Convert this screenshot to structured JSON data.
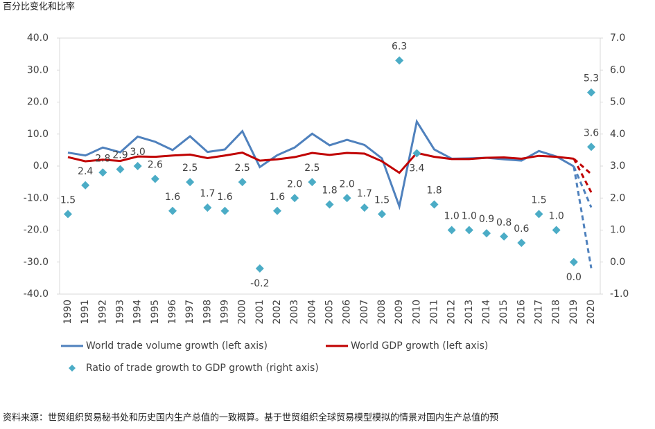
{
  "chart_data": {
    "type": "line",
    "title": "百分比变化和比率",
    "footnote": "资料来源：世贸组织贸易秘书处和历史国内生产总值的一致概算。基于世贸组织全球贸易模型模拟的情景对国内生产总值的预",
    "categories": [
      "1990",
      "1991",
      "1992",
      "1993",
      "1994",
      "1995",
      "1996",
      "1997",
      "1998",
      "1999",
      "2000",
      "2001",
      "2002",
      "2003",
      "2004",
      "2005",
      "2006",
      "2007",
      "2008",
      "2009",
      "2010",
      "2011",
      "2012",
      "2013",
      "2014",
      "2015",
      "2016",
      "2017",
      "2018",
      "2019",
      "2020"
    ],
    "ylim": [
      -40,
      40
    ],
    "yticks": [
      {
        "value": -40,
        "label": "-40.0"
      },
      {
        "value": -30,
        "label": "-30.0"
      },
      {
        "value": -20,
        "label": "-20.0"
      },
      {
        "value": -10,
        "label": "-10.0"
      },
      {
        "value": 0,
        "label": "0.0"
      },
      {
        "value": 10,
        "label": "10.0"
      },
      {
        "value": 20,
        "label": "20.0"
      },
      {
        "value": 30,
        "label": "30.0"
      },
      {
        "value": 40,
        "label": "40.0"
      }
    ],
    "y2lim": [
      -1,
      7
    ],
    "y2ticks": [
      {
        "value": -1,
        "label": "-1.0"
      },
      {
        "value": 0,
        "label": "0.0"
      },
      {
        "value": 1,
        "label": "1.0"
      },
      {
        "value": 2,
        "label": "2.0"
      },
      {
        "value": 3,
        "label": "3.0"
      },
      {
        "value": 4,
        "label": "4.0"
      },
      {
        "value": 5,
        "label": "5.0"
      },
      {
        "value": 6,
        "label": "6.0"
      },
      {
        "value": 7,
        "label": "7.0"
      }
    ],
    "grid": false,
    "series": [
      {
        "name": "World trade volume growth (left axis)",
        "type": "line",
        "color": "#4f81bd",
        "values": [
          4.2,
          3.3,
          5.8,
          4.3,
          9.2,
          7.6,
          5.0,
          9.3,
          4.4,
          5.2,
          10.9,
          -0.3,
          3.4,
          5.8,
          10.1,
          6.5,
          8.2,
          6.6,
          2.4,
          -12.6,
          13.9,
          5.2,
          2.3,
          2.4,
          2.6,
          2.1,
          1.7,
          4.7,
          3.0,
          -0.1,
          null
        ],
        "projections": [
          -12.9,
          -31.9
        ]
      },
      {
        "name": "World GDP growth (left axis)",
        "type": "line",
        "color": "#c00000",
        "values": [
          2.8,
          1.5,
          2.0,
          1.6,
          3.0,
          2.9,
          3.3,
          3.6,
          2.5,
          3.3,
          4.2,
          1.7,
          2.1,
          2.8,
          4.1,
          3.5,
          4.1,
          3.9,
          1.5,
          -2.1,
          4.1,
          2.9,
          2.2,
          2.2,
          2.6,
          2.7,
          2.3,
          3.2,
          2.9,
          2.3,
          null
        ],
        "projections": [
          -2.5,
          -8.2
        ]
      },
      {
        "name": "Ratio of trade growth to GDP growth (right axis)",
        "type": "scatter",
        "axis": "y2",
        "color": "#4bacc6",
        "values": [
          1.5,
          2.4,
          2.8,
          2.9,
          3.0,
          2.6,
          1.6,
          2.5,
          1.7,
          1.6,
          2.5,
          -0.2,
          1.6,
          2.0,
          2.5,
          1.8,
          2.0,
          1.7,
          1.5,
          6.3,
          3.4,
          1.8,
          1.0,
          1.0,
          0.9,
          0.8,
          0.6,
          1.5,
          1.0,
          0.0,
          null
        ],
        "value_labels": [
          "1.5",
          "2.4",
          "2.8",
          "2.9",
          "3.0",
          "2.6",
          "1.6",
          "2.5",
          "1.7",
          "1.6",
          "2.5",
          "-0.2",
          "1.6",
          "2.0",
          "2.5",
          "1.8",
          "2.0",
          "1.7",
          "1.5",
          "6.3",
          "3.4",
          "1.8",
          "1.0",
          "1.0",
          "0.9",
          "0.8",
          "0.6",
          "1.5",
          "1.0",
          "0.0",
          null
        ],
        "projections": [
          5.3,
          3.6
        ],
        "projection_labels": [
          "5.3",
          "3.6"
        ]
      }
    ]
  }
}
